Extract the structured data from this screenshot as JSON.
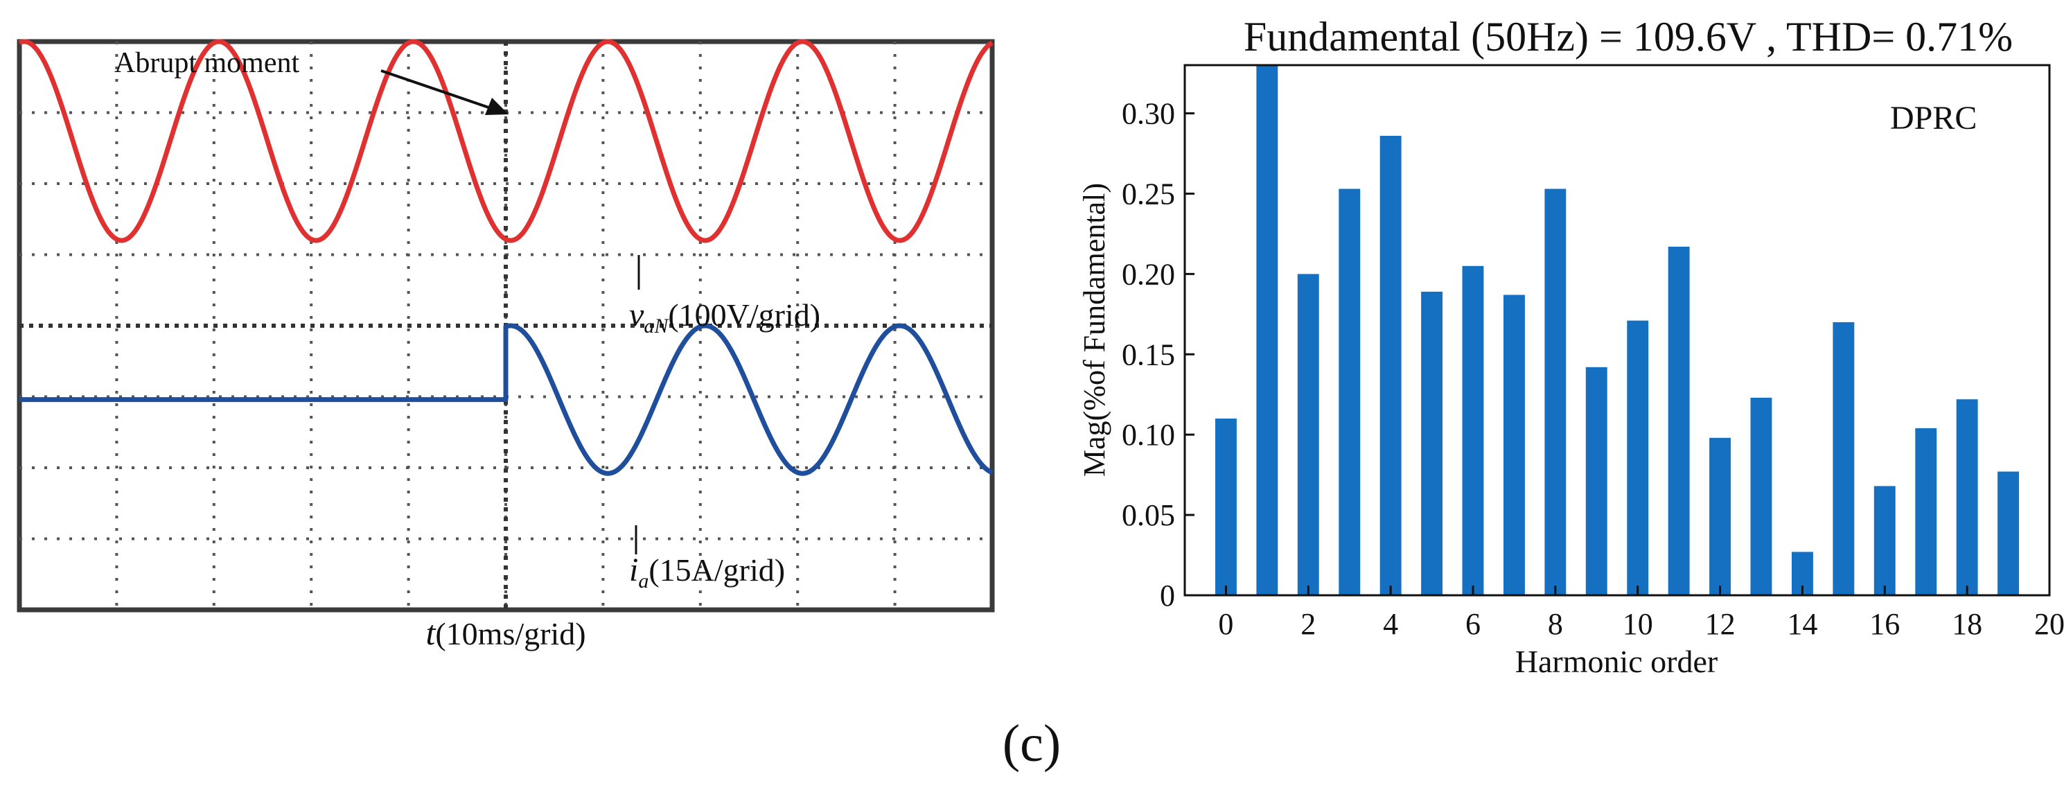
{
  "panel_label": "(c)",
  "chart_data": [
    {
      "type": "line",
      "title": "",
      "xlabel_var": "t",
      "xlabel_unit": "(10ms/grid)",
      "grid": true,
      "grid_divisions": {
        "x": 10,
        "y": 8
      },
      "annotation": {
        "text": "Abrupt moment",
        "x": 50
      },
      "x_range_ms": [
        0,
        100
      ],
      "series": [
        {
          "name": "v_aN",
          "var": "v",
          "sub": "aN",
          "unit_label": "(100V/grid)",
          "color": "#e03030",
          "scale_per_grid": 100,
          "unit": "V",
          "amplitude_grids": 1.4,
          "offset_grids": 2.6,
          "frequency_hz": 50,
          "start_ms": 0
        },
        {
          "name": "i_a",
          "var": "i",
          "sub": "a",
          "unit_label": "(15A/grid)",
          "color": "#1f4e9c",
          "scale_per_grid": 15,
          "unit": "A",
          "amplitude_grids": 1.04,
          "offset_grids": -1.04,
          "frequency_hz": 50,
          "start_ms": 50
        }
      ]
    },
    {
      "type": "bar",
      "title": "Fundamental (50Hz) = 109.6V , THD= 0.71%",
      "xlabel": "Harmonic order",
      "ylabel": "Mag(%of Fundamental)",
      "legend_text": "DPRC",
      "color": "#1670c2",
      "xlim": [
        -1,
        20
      ],
      "ylim": [
        0,
        0.33
      ],
      "xticks": [
        0,
        2,
        4,
        6,
        8,
        10,
        12,
        14,
        16,
        18,
        20
      ],
      "yticks": [
        0,
        0.05,
        0.1,
        0.15,
        0.2,
        0.25,
        0.3
      ],
      "ytick_labels": [
        "0",
        "0.05",
        "0.10",
        "0.15",
        "0.20",
        "0.25",
        "0.30"
      ],
      "categories": [
        0,
        1,
        2,
        3,
        4,
        5,
        6,
        7,
        8,
        9,
        10,
        11,
        12,
        13,
        14,
        15,
        16,
        17,
        18,
        19
      ],
      "values": [
        0.11,
        0.33,
        0.2,
        0.253,
        0.286,
        0.189,
        0.205,
        0.187,
        0.253,
        0.142,
        0.171,
        0.217,
        0.098,
        0.123,
        0.027,
        0.17,
        0.068,
        0.104,
        0.122,
        0.077
      ]
    }
  ]
}
